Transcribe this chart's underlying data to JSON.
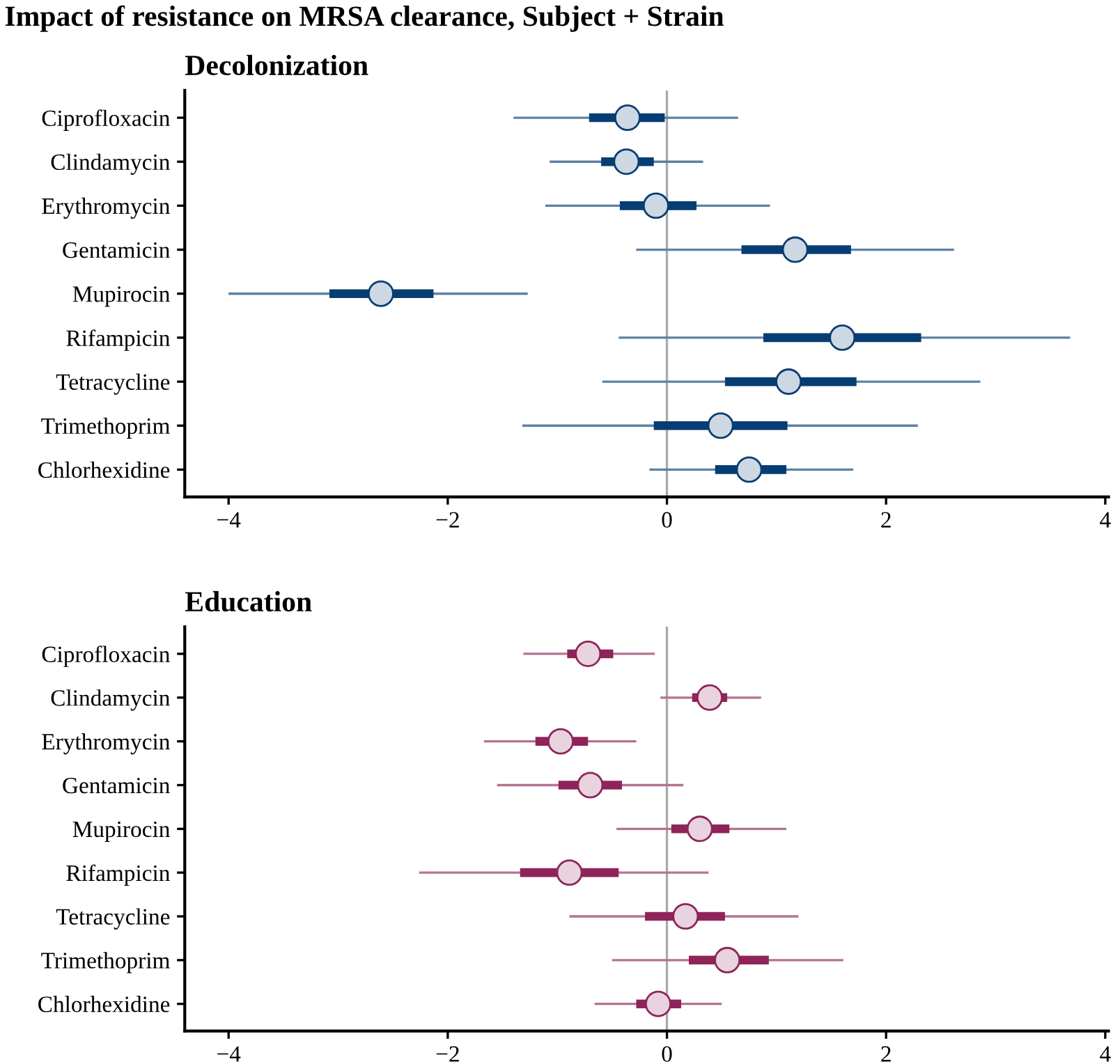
{
  "chart_data": [
    {
      "type": "box",
      "orientation": "horizontal",
      "title": "Decolonization",
      "annotations": [
        "Impact of resistance on MRSA clearance, Subject + Strain"
      ],
      "categories": [
        "Ciprofloxacin",
        "Clindamycin",
        "Erythromycin",
        "Gentamicin",
        "Mupirocin",
        "Rifampicin",
        "Tetracycline",
        "Trimethoprim",
        "Chlorhexidine"
      ],
      "series": [
        {
          "color": "#063d73",
          "boxes": [
            {
              "low": -1.4,
              "q1": -0.71,
              "median": -0.36,
              "q3": -0.02,
              "high": 0.65
            },
            {
              "low": -1.07,
              "q1": -0.6,
              "median": -0.37,
              "q3": -0.12,
              "high": 0.33
            },
            {
              "low": -1.11,
              "q1": -0.43,
              "median": -0.1,
              "q3": 0.27,
              "high": 0.94
            },
            {
              "low": -0.28,
              "q1": 0.68,
              "median": 1.17,
              "q3": 1.68,
              "high": 2.62
            },
            {
              "low": -4.0,
              "q1": -3.08,
              "median": -2.61,
              "q3": -2.13,
              "high": -1.27
            },
            {
              "low": -0.44,
              "q1": 0.88,
              "median": 1.6,
              "q3": 2.32,
              "high": 3.68
            },
            {
              "low": -0.59,
              "q1": 0.53,
              "median": 1.11,
              "q3": 1.73,
              "high": 2.86
            },
            {
              "low": -1.32,
              "q1": -0.12,
              "median": 0.49,
              "q3": 1.1,
              "high": 2.29
            },
            {
              "low": -0.16,
              "q1": 0.44,
              "median": 0.75,
              "q3": 1.09,
              "high": 1.7
            }
          ]
        }
      ],
      "xlim": [
        -4.4,
        4.03
      ],
      "xticks": [
        -4,
        -2,
        0,
        2,
        4
      ],
      "ref_lines": [
        {
          "axis": "x",
          "value": 0,
          "color": "#aaaaaa"
        }
      ],
      "grid": false,
      "legend": false
    },
    {
      "type": "box",
      "orientation": "horizontal",
      "title": "Education",
      "categories": [
        "Ciprofloxacin",
        "Clindamycin",
        "Erythromycin",
        "Gentamicin",
        "Mupirocin",
        "Rifampicin",
        "Tetracycline",
        "Trimethoprim",
        "Chlorhexidine"
      ],
      "series": [
        {
          "color": "#8e2459",
          "boxes": [
            {
              "low": -1.31,
              "q1": -0.91,
              "median": -0.72,
              "q3": -0.49,
              "high": -0.11
            },
            {
              "low": -0.06,
              "q1": 0.23,
              "median": 0.39,
              "q3": 0.55,
              "high": 0.86
            },
            {
              "low": -1.67,
              "q1": -1.2,
              "median": -0.97,
              "q3": -0.72,
              "high": -0.28
            },
            {
              "low": -1.55,
              "q1": -0.99,
              "median": -0.7,
              "q3": -0.41,
              "high": 0.15
            },
            {
              "low": -0.46,
              "q1": 0.04,
              "median": 0.3,
              "q3": 0.57,
              "high": 1.09
            },
            {
              "low": -2.26,
              "q1": -1.34,
              "median": -0.89,
              "q3": -0.44,
              "high": 0.38
            },
            {
              "low": -0.89,
              "q1": -0.2,
              "median": 0.17,
              "q3": 0.53,
              "high": 1.2
            },
            {
              "low": -0.5,
              "q1": 0.2,
              "median": 0.55,
              "q3": 0.93,
              "high": 1.61
            },
            {
              "low": -0.66,
              "q1": -0.28,
              "median": -0.08,
              "q3": 0.13,
              "high": 0.5
            }
          ]
        }
      ],
      "xlim": [
        -4.4,
        4.03
      ],
      "xticks": [
        -4,
        -2,
        0,
        2,
        4
      ],
      "ref_lines": [
        {
          "axis": "x",
          "value": 0,
          "color": "#aaaaaa"
        }
      ],
      "grid": false,
      "legend": false
    }
  ]
}
